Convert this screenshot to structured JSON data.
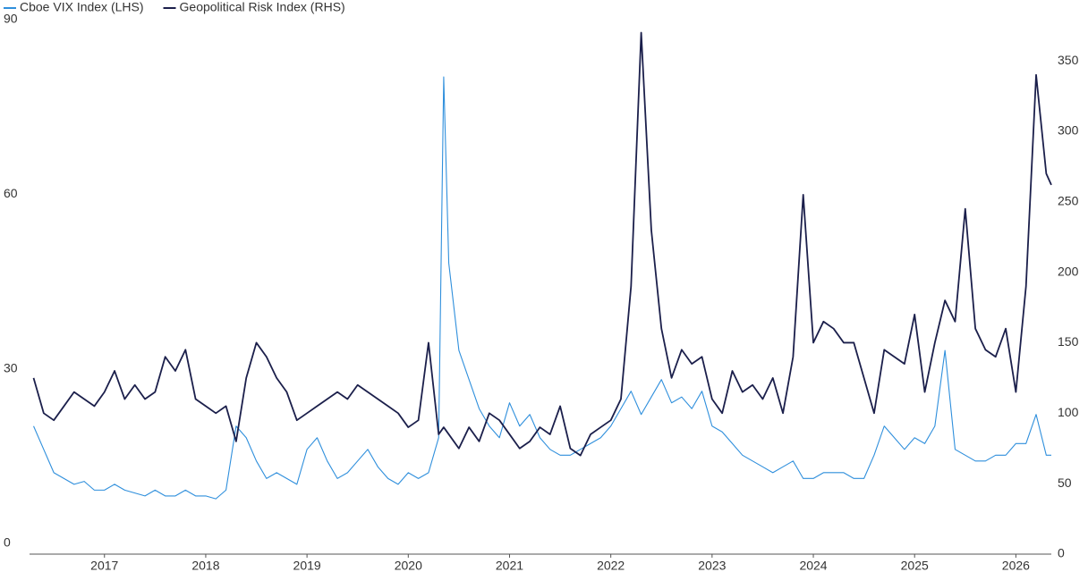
{
  "chart_data": {
    "type": "line",
    "legend": "top-left",
    "x": [
      2016.8,
      2016.9,
      2017.0,
      2017.1,
      2017.2,
      2017.3,
      2017.4,
      2017.5,
      2017.6,
      2017.7,
      2017.8,
      2017.9,
      2018.0,
      2018.1,
      2018.2,
      2018.3,
      2018.4,
      2018.5,
      2018.6,
      2018.7,
      2018.8,
      2018.9,
      2019.0,
      2019.1,
      2019.2,
      2019.3,
      2019.4,
      2019.5,
      2019.6,
      2019.7,
      2019.8,
      2019.9,
      2020.0,
      2020.1,
      2020.2,
      2020.3,
      2020.4,
      2020.5,
      2020.6,
      2020.7,
      2020.8,
      2020.85,
      2020.9,
      2021.0,
      2021.1,
      2021.2,
      2021.3,
      2021.4,
      2021.5,
      2021.6,
      2021.7,
      2021.8,
      2021.9,
      2022.0,
      2022.1,
      2022.2,
      2022.3,
      2022.4,
      2022.5,
      2022.6,
      2022.7,
      2022.8,
      2022.9,
      2023.0,
      2023.1,
      2023.2,
      2023.3,
      2023.4,
      2023.5,
      2023.6,
      2023.7,
      2023.8,
      2023.9,
      2024.0,
      2024.1,
      2024.2,
      2024.3,
      2024.4,
      2024.5,
      2024.6,
      2024.7,
      2024.8,
      2024.9,
      2025.0,
      2025.1,
      2025.2,
      2025.3,
      2025.4,
      2025.5,
      2025.6,
      2025.7,
      2025.8,
      2025.9,
      2026.0,
      2026.1,
      2026.2,
      2026.3,
      2026.4,
      2026.5,
      2026.6,
      2026.7,
      2026.8,
      2026.85
    ],
    "series": [
      {
        "name": "Cboe VIX Index (LHS)",
        "color": "#2f8fdc",
        "values": [
          22,
          18,
          14,
          13,
          12,
          12.5,
          11,
          11,
          12,
          11,
          10.5,
          10,
          11,
          10,
          10,
          11,
          10,
          10,
          9.5,
          11,
          22,
          20,
          16,
          13,
          14,
          13,
          12,
          18,
          20,
          16,
          13,
          14,
          16,
          18,
          15,
          13,
          12,
          14,
          13,
          14,
          20,
          82,
          50,
          35,
          30,
          25,
          22,
          20,
          26,
          22,
          24,
          20,
          18,
          17,
          17,
          18,
          19,
          20,
          22,
          25,
          28,
          24,
          27,
          30,
          26,
          27,
          25,
          28,
          22,
          21,
          19,
          17,
          16,
          15,
          14,
          15,
          16,
          13,
          13,
          14,
          14,
          14,
          13,
          13,
          17,
          22,
          20,
          18,
          20,
          19,
          22,
          35,
          18,
          17,
          16,
          16,
          17,
          17,
          19,
          19,
          24,
          17,
          17
        ]
      },
      {
        "name": "Geopolitical Risk Index (RHS)",
        "color": "#1b1f4b",
        "axis": "y2",
        "values": [
          125,
          100,
          95,
          105,
          115,
          110,
          105,
          115,
          130,
          110,
          120,
          110,
          115,
          140,
          130,
          145,
          110,
          105,
          100,
          105,
          80,
          125,
          150,
          140,
          125,
          115,
          95,
          100,
          105,
          110,
          115,
          110,
          120,
          115,
          110,
          105,
          100,
          90,
          95,
          150,
          85,
          90,
          85,
          75,
          90,
          80,
          100,
          95,
          85,
          75,
          80,
          90,
          85,
          105,
          75,
          70,
          85,
          90,
          95,
          110,
          190,
          370,
          230,
          160,
          125,
          145,
          135,
          140,
          110,
          100,
          130,
          115,
          120,
          110,
          125,
          100,
          140,
          255,
          150,
          165,
          160,
          150,
          150,
          125,
          100,
          145,
          140,
          135,
          170,
          115,
          150,
          180,
          165,
          245,
          160,
          145,
          140,
          160,
          115,
          190,
          340,
          270,
          262
        ]
      }
    ],
    "xlim": [
      2016.76,
      2026.85
    ],
    "xticks": [
      {
        "value": 2017.5,
        "label": "2017"
      },
      {
        "value": 2018.5,
        "label": "2018"
      },
      {
        "value": 2019.5,
        "label": "2019"
      },
      {
        "value": 2020.5,
        "label": "2020"
      },
      {
        "value": 2021.5,
        "label": "2021"
      },
      {
        "value": 2022.5,
        "label": "2022"
      },
      {
        "value": 2023.5,
        "label": "2023"
      },
      {
        "value": 2024.5,
        "label": "2024"
      },
      {
        "value": 2025.5,
        "label": "2025"
      },
      {
        "value": 2026.5,
        "label": "2026"
      }
    ],
    "ylim": [
      0,
      90
    ],
    "yticks": [
      0,
      30,
      60,
      90
    ],
    "y2lim": [
      0,
      371.6
    ],
    "y2ticks": [
      0,
      50,
      100,
      150,
      200,
      250,
      300,
      350
    ]
  }
}
